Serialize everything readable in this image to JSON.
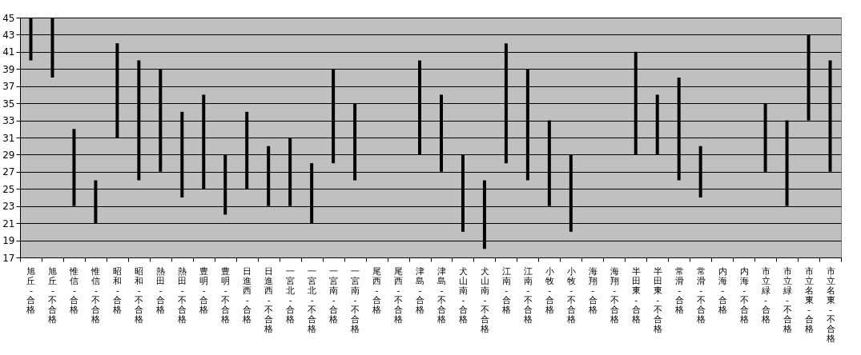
{
  "chart_data": {
    "type": "bar",
    "categories": [
      "旭丘-合格",
      "旭丘-不合格",
      "惟信-合格",
      "惟信-不合格",
      "昭和-合格",
      "昭和-不合格",
      "熱田-合格",
      "熱田-不合格",
      "豊明-合格",
      "豊明-不合格",
      "日進西-合格",
      "日進西-不合格",
      "一宮北-合格",
      "一宮北-不合格",
      "一宮南-合格",
      "一宮南-不合格",
      "尾西-合格",
      "尾西-不合格",
      "津島-合格",
      "津島-不合格",
      "犬山南-合格",
      "犬山南-不合格",
      "江南-合格",
      "江南-不合格",
      "小牧-合格",
      "小牧-不合格",
      "海翔-合格",
      "海翔-不合格",
      "半田東-合格",
      "半田東-不合格",
      "常滑-合格",
      "常滑-不合格",
      "内海-合格",
      "内海-不合格",
      "市立緑-合格",
      "市立緑-不合格",
      "市立名東-合格",
      "市立名東-不合格"
    ],
    "base": [
      40,
      38,
      23,
      21,
      31,
      26,
      27,
      24,
      25,
      22,
      25,
      23,
      23,
      21,
      28,
      26,
      null,
      null,
      29,
      27,
      20,
      18,
      28,
      26,
      23,
      20,
      null,
      null,
      29,
      29,
      26,
      24,
      null,
      null,
      27,
      23,
      33,
      27
    ],
    "values": [
      5,
      7,
      9,
      5,
      11,
      14,
      12,
      10,
      11,
      7,
      9,
      7,
      8,
      7,
      11,
      9,
      null,
      null,
      11,
      9,
      9,
      8,
      14,
      13,
      10,
      9,
      null,
      null,
      12,
      7,
      12,
      6,
      null,
      null,
      8,
      10,
      10,
      13
    ],
    "color": "#000000",
    "ylim": [
      17,
      45
    ],
    "yticks": [
      17,
      19,
      21,
      23,
      25,
      27,
      29,
      31,
      33,
      35,
      37,
      39,
      41,
      43,
      45
    ],
    "grid": "y"
  }
}
